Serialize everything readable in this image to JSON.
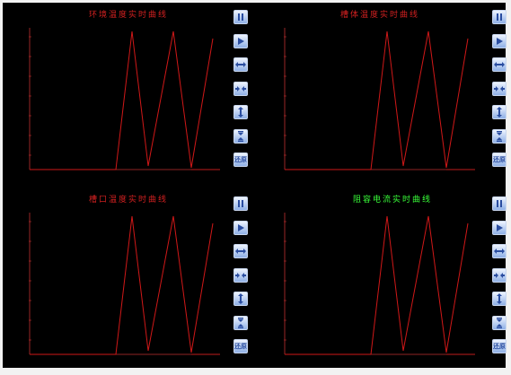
{
  "colors": {
    "background": "#000000",
    "curve": "#d01818",
    "axis": "#c03030",
    "title_red": "#d02020",
    "title_green": "#39ff39",
    "button_glyph": "#2a4da0"
  },
  "panels": [
    {
      "title": "环境温度实时曲线",
      "title_color": "red"
    },
    {
      "title": "槽体温度实时曲线",
      "title_color": "red"
    },
    {
      "title": "槽口温度实时曲线",
      "title_color": "red"
    },
    {
      "title": "阻容电流实时曲线",
      "title_color": "green"
    }
  ],
  "toolbar": [
    {
      "name": "pause-button",
      "icon": "pause-icon",
      "label": ""
    },
    {
      "name": "play-button",
      "icon": "play-icon",
      "label": ""
    },
    {
      "name": "zoom-in-horizontal-button",
      "icon": "expand-horizontal-icon",
      "label": ""
    },
    {
      "name": "zoom-out-horizontal-button",
      "icon": "compress-horizontal-icon",
      "label": ""
    },
    {
      "name": "zoom-in-vertical-button",
      "icon": "expand-vertical-icon",
      "label": ""
    },
    {
      "name": "zoom-out-vertical-button",
      "icon": "compress-vertical-icon",
      "label": ""
    },
    {
      "name": "restore-button",
      "icon": "restore-icon",
      "label": "还原"
    }
  ]
}
